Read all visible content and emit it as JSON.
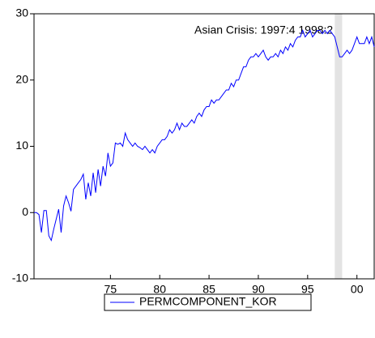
{
  "chart_data": {
    "type": "line",
    "annotation": "Asian Crisis: 1997:4 1998:2",
    "shade": [
      1997.75,
      1998.5
    ],
    "x": [
      1967.25,
      1967.5,
      1967.75,
      1968,
      1968.25,
      1968.5,
      1968.75,
      1969,
      1969.25,
      1969.5,
      1969.75,
      1970,
      1970.25,
      1970.5,
      1970.75,
      1971,
      1971.25,
      1971.5,
      1971.75,
      1972,
      1972.25,
      1972.5,
      1972.75,
      1973,
      1973.25,
      1973.5,
      1973.75,
      1974,
      1974.25,
      1974.5,
      1974.75,
      1975,
      1975.25,
      1975.5,
      1975.75,
      1976,
      1976.25,
      1976.5,
      1976.75,
      1977,
      1977.25,
      1977.5,
      1977.75,
      1978,
      1978.25,
      1978.5,
      1978.75,
      1979,
      1979.25,
      1979.5,
      1979.75,
      1980,
      1980.25,
      1980.5,
      1980.75,
      1981,
      1981.25,
      1981.5,
      1981.75,
      1982,
      1982.25,
      1982.5,
      1982.75,
      1983,
      1983.25,
      1983.5,
      1983.75,
      1984,
      1984.25,
      1984.5,
      1984.75,
      1985,
      1985.25,
      1985.5,
      1985.75,
      1986,
      1986.25,
      1986.5,
      1986.75,
      1987,
      1987.25,
      1987.5,
      1987.75,
      1988,
      1988.25,
      1988.5,
      1988.75,
      1989,
      1989.25,
      1989.5,
      1989.75,
      1990,
      1990.25,
      1990.5,
      1990.75,
      1991,
      1991.25,
      1991.5,
      1991.75,
      1992,
      1992.25,
      1992.5,
      1992.75,
      1993,
      1993.25,
      1993.5,
      1993.75,
      1994,
      1994.25,
      1994.5,
      1994.75,
      1995,
      1995.25,
      1995.5,
      1995.75,
      1996,
      1996.25,
      1996.5,
      1996.75,
      1997,
      1997.25,
      1997.5,
      1997.75,
      1998,
      1998.25,
      1998.5,
      1998.75,
      1999,
      1999.25,
      1999.5,
      1999.75,
      2000,
      2000.25,
      2000.5,
      2000.75,
      2001,
      2001.25,
      2001.5,
      2001.75
    ],
    "series": [
      {
        "name": "PERMCOMPONENT_KOR",
        "color": "#0000ff",
        "values": [
          0,
          0,
          -0.3,
          -3,
          0.3,
          0.3,
          -3.5,
          -4.2,
          -2.5,
          -1,
          0.5,
          -3,
          1,
          2.5,
          1.5,
          0.2,
          3.5,
          4,
          4.5,
          5,
          5.8,
          2,
          4.5,
          2.5,
          6,
          3,
          6.5,
          4,
          7,
          5.5,
          9,
          7,
          7.5,
          10.5,
          10.3,
          10.5,
          10,
          12,
          11,
          10.5,
          10,
          10.5,
          10,
          9.8,
          9.5,
          10,
          9.5,
          9,
          9.5,
          9,
          10,
          10.5,
          11,
          11,
          11.5,
          12.5,
          12,
          12.5,
          13.5,
          12.5,
          13.5,
          13,
          13,
          13.5,
          14,
          13.5,
          14.5,
          15,
          14.5,
          15.5,
          16,
          16,
          17,
          16.5,
          17,
          17,
          17.5,
          18,
          18.5,
          18.5,
          19.5,
          19,
          20,
          20,
          21,
          22,
          22,
          23,
          23.5,
          23.5,
          24,
          23.5,
          24,
          24.5,
          23.5,
          23,
          23.5,
          23.5,
          24,
          23.5,
          24.5,
          24,
          25,
          24.5,
          25.5,
          25,
          26,
          26.5,
          26.5,
          27.5,
          26.5,
          27,
          27.5,
          26.5,
          27,
          27.5,
          27.5,
          27,
          27.5,
          27,
          27.5,
          27,
          26.5,
          25,
          23.5,
          23.5,
          24,
          24.5,
          24,
          24.5,
          25.5,
          26.5,
          25.5,
          25.5,
          25.5,
          26.5,
          25.5,
          26.5,
          25
        ]
      }
    ],
    "xlim": [
      1967.25,
      2001.75
    ],
    "xticks": [
      {
        "value": 1975,
        "label": "75"
      },
      {
        "value": 1980,
        "label": "80"
      },
      {
        "value": 1985,
        "label": "85"
      },
      {
        "value": 1990,
        "label": "90"
      },
      {
        "value": 1995,
        "label": "95"
      },
      {
        "value": 2000,
        "label": "00"
      }
    ],
    "ylim": [
      -10,
      30
    ],
    "yticks": [
      -10,
      0,
      10,
      20,
      30
    ],
    "grid": false
  }
}
